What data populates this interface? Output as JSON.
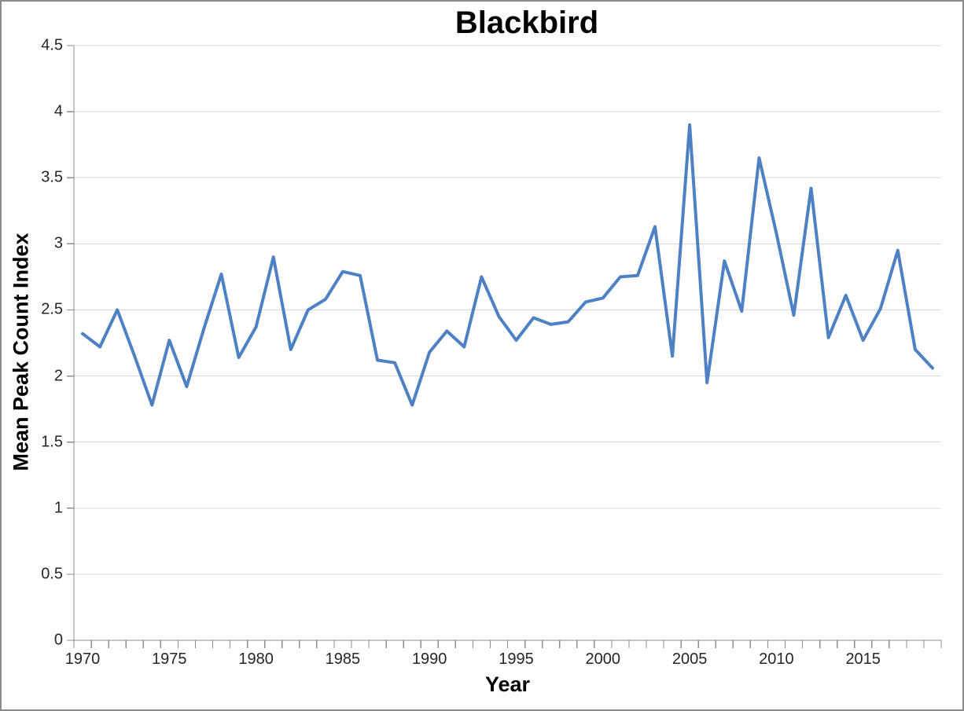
{
  "window": {
    "background_color": "#FFFFFF",
    "border_color": "#8B8B8B"
  },
  "chart_data": {
    "type": "line",
    "title": "Blackbird",
    "xlabel": "Year",
    "ylabel": "Mean Peak Count Index",
    "series": [
      {
        "name": "Mean Peak Count Index",
        "x": [
          1970,
          1971,
          1972,
          1973,
          1974,
          1975,
          1976,
          1977,
          1978,
          1979,
          1980,
          1981,
          1982,
          1983,
          1984,
          1985,
          1986,
          1987,
          1988,
          1989,
          1990,
          1991,
          1992,
          1993,
          1994,
          1995,
          1996,
          1997,
          1998,
          1999,
          2000,
          2001,
          2002,
          2003,
          2004,
          2005,
          2006,
          2007,
          2008,
          2009,
          2010,
          2011,
          2012,
          2013,
          2014,
          2015,
          2016,
          2017,
          2018,
          2019
        ],
        "values": [
          2.32,
          2.22,
          2.5,
          2.15,
          1.78,
          2.27,
          1.92,
          2.36,
          2.77,
          2.14,
          2.37,
          2.9,
          2.2,
          2.5,
          2.58,
          2.79,
          2.76,
          2.12,
          2.1,
          1.78,
          2.18,
          2.34,
          2.22,
          2.75,
          2.45,
          2.27,
          2.44,
          2.39,
          2.41,
          2.56,
          2.59,
          2.75,
          2.76,
          3.13,
          2.15,
          3.9,
          1.95,
          2.87,
          2.49,
          3.65,
          3.08,
          2.46,
          3.42,
          2.29,
          2.61,
          2.27,
          2.51,
          2.95,
          2.2,
          2.06
        ]
      }
    ],
    "ylim": [
      0,
      4.5
    ],
    "ytick_step": 0.5,
    "ytick_labels": [
      "0",
      "0.5",
      "1",
      "1.5",
      "2",
      "2.5",
      "3",
      "3.5",
      "4",
      "4.5"
    ],
    "xticks_labeled": [
      1970,
      1975,
      1980,
      1985,
      1990,
      1995,
      2000,
      2005,
      2010,
      2015
    ],
    "xtick_minor_interval_years": 1,
    "grid": "horizontal",
    "legend": "none",
    "colors": {
      "line": "#4E80C4",
      "gridline": "#D9D9D9",
      "axis": "#8C8C8C",
      "tick_label": "#262626",
      "title_text": "#000000"
    }
  }
}
